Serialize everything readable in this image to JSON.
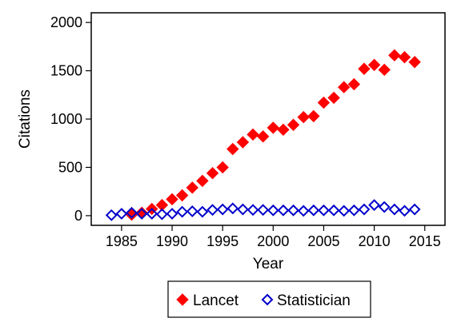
{
  "chart_data": {
    "type": "scatter",
    "xlabel": "Year",
    "ylabel": "Citations",
    "xlim": [
      1982,
      2017
    ],
    "ylim": [
      -100,
      2100
    ],
    "xticks": [
      1985,
      1990,
      1995,
      2000,
      2005,
      2010,
      2015
    ],
    "yticks": [
      0,
      500,
      1000,
      1500,
      2000
    ],
    "grid": false,
    "legend_position": "bottom",
    "series": [
      {
        "name": "Lancet",
        "marker": "filled-diamond",
        "color": "#ff0000",
        "points": [
          [
            1986,
            10
          ],
          [
            1987,
            30
          ],
          [
            1988,
            70
          ],
          [
            1989,
            110
          ],
          [
            1990,
            170
          ],
          [
            1991,
            210
          ],
          [
            1992,
            290
          ],
          [
            1993,
            360
          ],
          [
            1994,
            440
          ],
          [
            1995,
            500
          ],
          [
            1996,
            690
          ],
          [
            1997,
            760
          ],
          [
            1998,
            840
          ],
          [
            1999,
            820
          ],
          [
            2000,
            910
          ],
          [
            2001,
            890
          ],
          [
            2002,
            940
          ],
          [
            2003,
            1020
          ],
          [
            2004,
            1030
          ],
          [
            2005,
            1170
          ],
          [
            2006,
            1220
          ],
          [
            2007,
            1330
          ],
          [
            2008,
            1360
          ],
          [
            2009,
            1520
          ],
          [
            2010,
            1560
          ],
          [
            2011,
            1510
          ],
          [
            2012,
            1660
          ],
          [
            2013,
            1640
          ],
          [
            2014,
            1590
          ]
        ]
      },
      {
        "name": "Statistician",
        "marker": "hollow-diamond",
        "color": "#0000cc",
        "points": [
          [
            1984,
            5
          ],
          [
            1985,
            20
          ],
          [
            1986,
            30
          ],
          [
            1987,
            20
          ],
          [
            1988,
            20
          ],
          [
            1989,
            15
          ],
          [
            1990,
            20
          ],
          [
            1991,
            40
          ],
          [
            1992,
            45
          ],
          [
            1993,
            40
          ],
          [
            1994,
            60
          ],
          [
            1995,
            65
          ],
          [
            1996,
            75
          ],
          [
            1997,
            65
          ],
          [
            1998,
            60
          ],
          [
            1999,
            60
          ],
          [
            2000,
            55
          ],
          [
            2001,
            55
          ],
          [
            2002,
            55
          ],
          [
            2003,
            50
          ],
          [
            2004,
            55
          ],
          [
            2005,
            55
          ],
          [
            2006,
            55
          ],
          [
            2007,
            50
          ],
          [
            2008,
            55
          ],
          [
            2009,
            65
          ],
          [
            2010,
            110
          ],
          [
            2011,
            90
          ],
          [
            2012,
            65
          ],
          [
            2013,
            50
          ],
          [
            2014,
            65
          ]
        ]
      }
    ]
  }
}
